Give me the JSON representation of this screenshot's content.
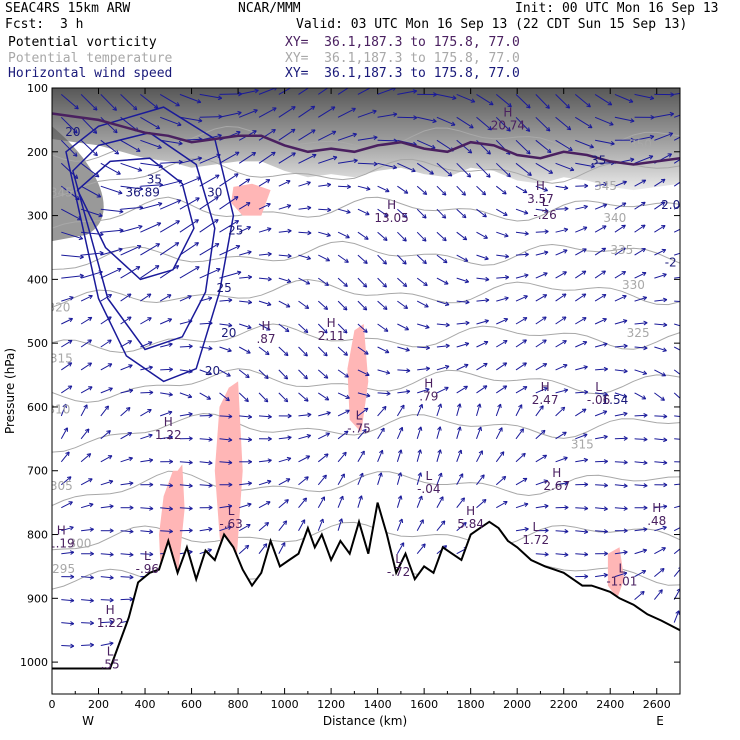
{
  "header": {
    "model": "SEAC4RS 15km ARW",
    "center": "NCAR/MMM",
    "init": "Init: 00 UTC Mon 16 Sep 13",
    "fcst_label": "Fcst:",
    "fcst_value": "3 h",
    "valid": "Valid: 03 UTC Mon 16 Sep 13 (22 CDT Sun 15 Sep 13)",
    "fields": [
      {
        "name": "Potential vorticity",
        "xy": "XY=  36.1,187.3 to 175.8, 77.0",
        "color": "#000000"
      },
      {
        "name": "Potential temperature",
        "xy": "XY=  36.1,187.3 to 175.8, 77.0",
        "color": "#a8a8a8"
      },
      {
        "name": "Horizontal wind speed",
        "xy": "XY=  36.1,187.3 to 175.8, 77.0",
        "color": "#1a1a7a"
      }
    ]
  },
  "chart_data": {
    "type": "cross-section",
    "xlabel": "Distance (km)",
    "ylabel": "Pressure (hPa)",
    "xlim": [
      0,
      2700
    ],
    "ylim": [
      1050,
      100
    ],
    "x_ticks": [
      0,
      200,
      400,
      600,
      800,
      1000,
      1200,
      1400,
      1600,
      1800,
      2000,
      2200,
      2400,
      2600
    ],
    "y_ticks": [
      100,
      200,
      300,
      400,
      500,
      600,
      700,
      800,
      900,
      1000
    ],
    "x_end_labels": {
      "left": "W",
      "right": "E"
    },
    "terrain": {
      "x": [
        0,
        100,
        250,
        330,
        370,
        420,
        460,
        500,
        540,
        580,
        620,
        660,
        700,
        740,
        780,
        820,
        860,
        900,
        940,
        980,
        1020,
        1060,
        1100,
        1130,
        1160,
        1200,
        1240,
        1280,
        1320,
        1360,
        1400,
        1440,
        1480,
        1520,
        1560,
        1600,
        1640,
        1680,
        1720,
        1760,
        1800,
        1840,
        1880,
        1920,
        1960,
        2000,
        2060,
        2120,
        2160,
        2200,
        2240,
        2280,
        2320,
        2360,
        2400,
        2440,
        2500,
        2560,
        2620,
        2700
      ],
      "p": [
        1010,
        1010,
        1010,
        930,
        875,
        860,
        855,
        810,
        860,
        820,
        870,
        825,
        840,
        800,
        820,
        855,
        880,
        860,
        810,
        850,
        840,
        830,
        790,
        820,
        800,
        840,
        810,
        830,
        780,
        830,
        750,
        800,
        860,
        830,
        870,
        850,
        860,
        820,
        830,
        840,
        800,
        790,
        780,
        790,
        810,
        820,
        840,
        850,
        855,
        860,
        870,
        880,
        880,
        885,
        890,
        900,
        910,
        925,
        935,
        950
      ]
    },
    "pv_contours": [
      {
        "x": [
          0,
          100,
          200,
          300,
          400,
          500,
          600,
          700,
          800,
          900,
          1000,
          1100,
          1200,
          1300,
          1400,
          1500,
          1600,
          1700,
          1800,
          1900,
          2000,
          2100,
          2200,
          2300,
          2400,
          2500,
          2600,
          2700
        ],
        "p": [
          140,
          145,
          150,
          160,
          170,
          175,
          185,
          180,
          175,
          175,
          190,
          200,
          195,
          200,
          190,
          185,
          195,
          200,
          185,
          190,
          205,
          210,
          200,
          205,
          215,
          220,
          215,
          210
        ]
      }
    ],
    "pv_labels": [
      {
        "kind": "H",
        "value": "20.74",
        "x": 1960,
        "p": 165
      },
      {
        "kind": "H",
        "value": "3.57",
        "x": 2100,
        "p": 280
      },
      {
        "kind": "L",
        "value": "-.26",
        "x": 2120,
        "p": 305
      },
      {
        "kind": "H",
        "value": "13.05",
        "x": 1460,
        "p": 310
      },
      {
        "kind": "H",
        "value": "2.11",
        "x": 1200,
        "p": 495
      },
      {
        "kind": "H",
        "value": ".87",
        "x": 920,
        "p": 500
      },
      {
        "kind": "H",
        "value": ".79",
        "x": 1620,
        "p": 590
      },
      {
        "kind": "H",
        "value": "2.47",
        "x": 2120,
        "p": 595
      },
      {
        "kind": "L",
        "value": "-.06",
        "x": 2350,
        "p": 595
      },
      {
        "kind": "H",
        "value": "1.22",
        "x": 500,
        "p": 650
      },
      {
        "kind": "L",
        "value": "-.75",
        "x": 1320,
        "p": 640
      },
      {
        "kind": "L",
        "value": "-.04",
        "x": 1620,
        "p": 735
      },
      {
        "kind": "H",
        "value": "2.67",
        "x": 2170,
        "p": 730
      },
      {
        "kind": "H",
        "value": ".48",
        "x": 2600,
        "p": 785
      },
      {
        "kind": "L",
        "value": "-.63",
        "x": 770,
        "p": 790
      },
      {
        "kind": "H",
        "value": "5.84",
        "x": 1800,
        "p": 790
      },
      {
        "kind": "L",
        "value": "1.72",
        "x": 2080,
        "p": 815
      },
      {
        "kind": "H",
        "value": "1.19",
        "x": 40,
        "p": 820
      },
      {
        "kind": "L",
        "value": "-.96",
        "x": 410,
        "p": 860
      },
      {
        "kind": "L",
        "value": "-.72",
        "x": 1490,
        "p": 865
      },
      {
        "kind": "L",
        "value": "-1.01",
        "x": 2450,
        "p": 880
      },
      {
        "kind": "H",
        "value": "1.22",
        "x": 250,
        "p": 945
      },
      {
        "kind": "L",
        "value": ".55",
        "x": 250,
        "p": 1010
      }
    ],
    "theta_labels": [
      {
        "value": "345",
        "x": 40,
        "p": 270
      },
      {
        "value": "320",
        "x": 30,
        "p": 450
      },
      {
        "value": "315",
        "x": 40,
        "p": 530
      },
      {
        "value": "310",
        "x": 30,
        "p": 610
      },
      {
        "value": "305",
        "x": 40,
        "p": 730
      },
      {
        "value": "300",
        "x": 120,
        "p": 820
      },
      {
        "value": "295",
        "x": 50,
        "p": 860
      },
      {
        "value": "350",
        "x": 2530,
        "p": 195
      },
      {
        "value": "345",
        "x": 2380,
        "p": 260
      },
      {
        "value": "340",
        "x": 2420,
        "p": 310
      },
      {
        "value": "335",
        "x": 2450,
        "p": 360
      },
      {
        "value": "330",
        "x": 2500,
        "p": 415
      },
      {
        "value": "325",
        "x": 2520,
        "p": 490
      },
      {
        "value": "315",
        "x": 2280,
        "p": 665
      }
    ],
    "wind_labels": [
      {
        "value": "20",
        "x": 90,
        "p": 175
      },
      {
        "value": "35",
        "x": 440,
        "p": 250
      },
      {
        "value": "30",
        "x": 700,
        "p": 270
      },
      {
        "value": "25",
        "x": 790,
        "p": 330
      },
      {
        "value": "25",
        "x": 740,
        "p": 420
      },
      {
        "value": "20",
        "x": 760,
        "p": 490
      },
      {
        "value": "20",
        "x": 690,
        "p": 550
      },
      {
        "value": "35",
        "x": 2350,
        "p": 220
      },
      {
        "value": "2.0",
        "x": 2660,
        "p": 290
      },
      {
        "value": "-2",
        "x": 2660,
        "p": 380
      },
      {
        "value": "1.54",
        "x": 2420,
        "p": 595
      },
      {
        "value": "36.89",
        "x": 390,
        "p": 270
      }
    ],
    "wind_contours": [
      {
        "x": [
          110,
          250,
          420,
          560,
          610,
          520,
          380,
          230,
          110
        ],
        "p": [
          260,
          215,
          210,
          250,
          320,
          385,
          400,
          350,
          260
        ]
      },
      {
        "x": [
          90,
          200,
          420,
          620,
          700,
          660,
          560,
          400,
          240,
          90
        ],
        "p": [
          230,
          190,
          170,
          220,
          320,
          420,
          490,
          510,
          430,
          230
        ]
      },
      {
        "x": [
          60,
          200,
          480,
          700,
          780,
          720,
          620,
          480,
          320,
          200,
          60
        ],
        "p": [
          200,
          160,
          130,
          180,
          300,
          420,
          540,
          560,
          520,
          430,
          200
        ]
      }
    ],
    "positive_pv_regions": [
      {
        "x": [
          540,
          560,
          570,
          540,
          500,
          470,
          460,
          480,
          520
        ],
        "p": [
          700,
          690,
          760,
          870,
          900,
          880,
          800,
          740,
          700
        ]
      },
      {
        "x": [
          760,
          800,
          820,
          790,
          740,
          720,
          700,
          720
        ],
        "p": [
          570,
          560,
          700,
          860,
          880,
          800,
          700,
          600
        ]
      },
      {
        "x": [
          1300,
          1340,
          1360,
          1330,
          1280,
          1270
        ],
        "p": [
          480,
          470,
          560,
          640,
          620,
          540
        ]
      },
      {
        "x": [
          780,
          860,
          940,
          900,
          820,
          770
        ],
        "p": [
          255,
          250,
          260,
          300,
          300,
          280
        ]
      },
      {
        "x": [
          2390,
          2440,
          2460,
          2430,
          2390
        ],
        "p": [
          830,
          820,
          870,
          900,
          880
        ]
      }
    ]
  }
}
